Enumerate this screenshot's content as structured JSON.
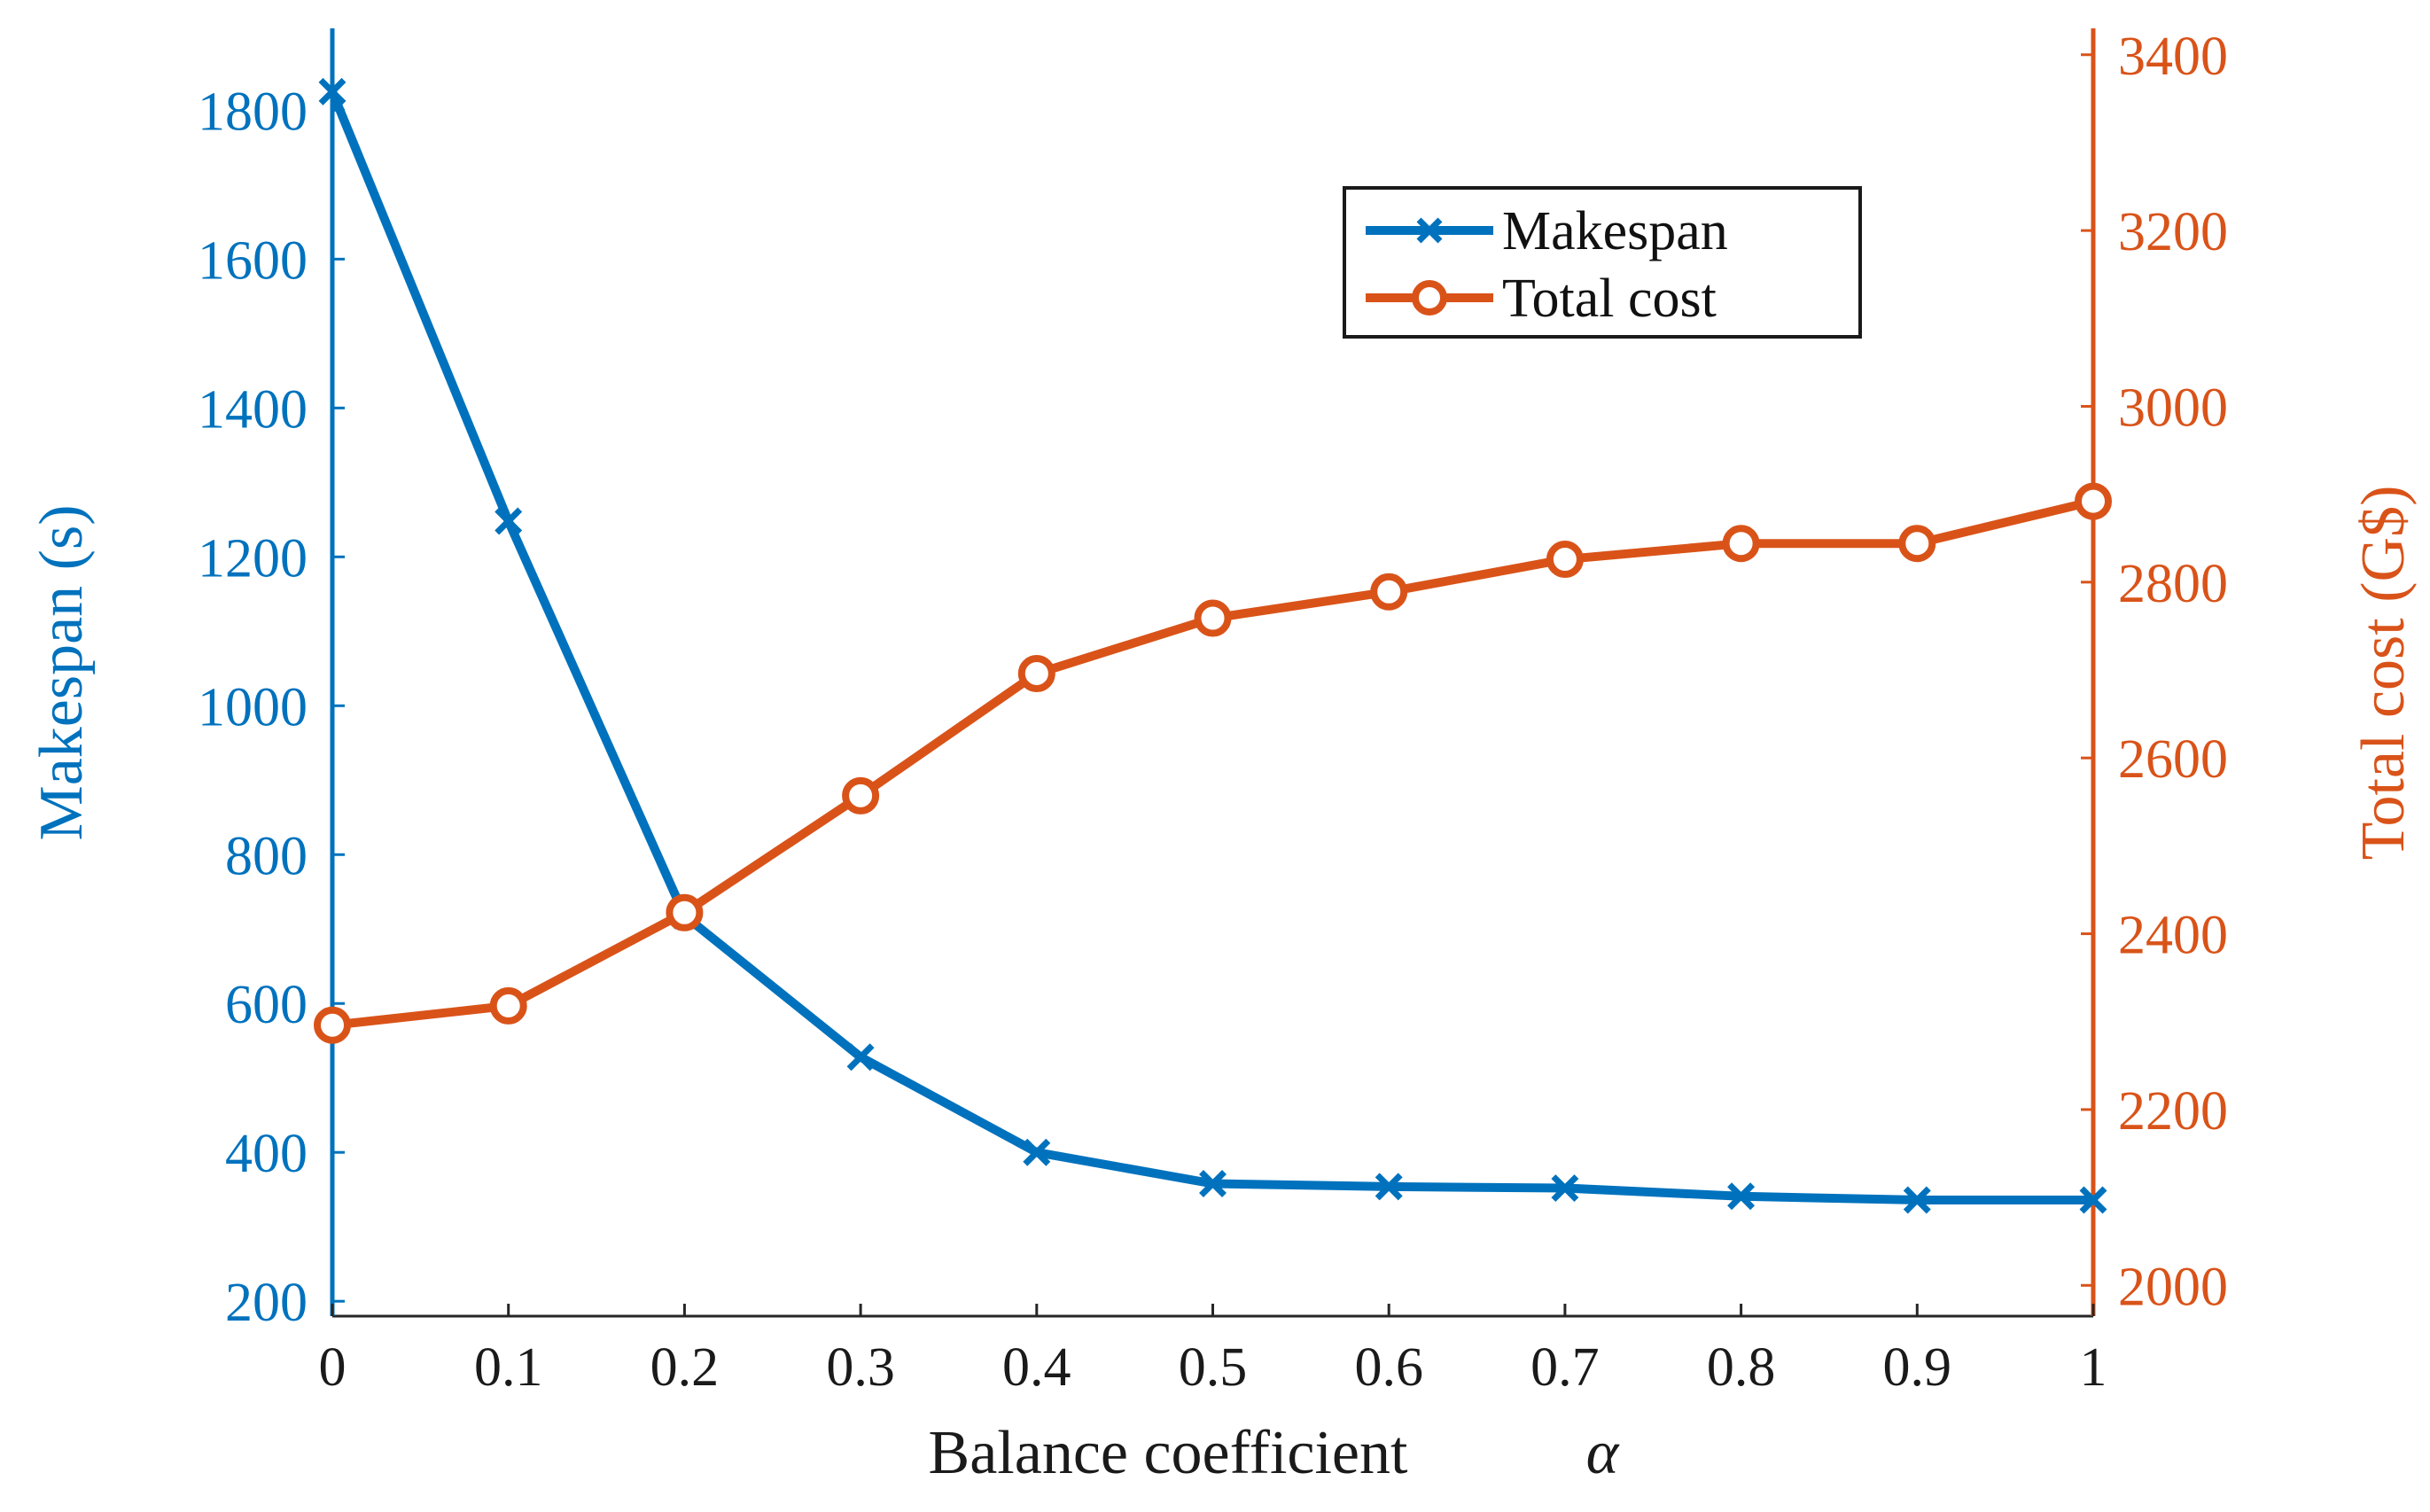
{
  "chart_data": {
    "type": "line",
    "x": [
      0,
      0.1,
      0.2,
      0.3,
      0.4,
      0.5,
      0.6,
      0.7,
      0.8,
      0.9,
      1
    ],
    "x_tick_labels": [
      "0",
      "0.1",
      "0.2",
      "0.3",
      "0.4",
      "0.5",
      "0.6",
      "0.7",
      "0.8",
      "0.9",
      "1"
    ],
    "xlabel": "Balance coefficient",
    "xlabel_symbol": "α",
    "xlim": [
      0,
      1
    ],
    "series": [
      {
        "name": "Makespan",
        "axis": "left",
        "marker": "x",
        "color": "#0072BD",
        "values": [
          1825,
          1248,
          718,
          528,
          400,
          358,
          354,
          352,
          341,
          336,
          336
        ]
      },
      {
        "name": "Total cost",
        "axis": "right",
        "marker": "o",
        "color": "#D95319",
        "values": [
          2296,
          2318,
          2424,
          2557,
          2696,
          2759,
          2789,
          2826,
          2844,
          2844,
          2892
        ]
      }
    ],
    "y_left": {
      "label": "Makespan (s)",
      "ylim": [
        180,
        1910
      ],
      "ticks": [
        200,
        400,
        600,
        800,
        1000,
        1200,
        1400,
        1600,
        1800
      ],
      "color": "#0072BD"
    },
    "y_right": {
      "label": "Total cost (G$)",
      "ylim": [
        1965,
        3430
      ],
      "ticks": [
        2000,
        2200,
        2400,
        2600,
        2800,
        3000,
        3200,
        3400
      ],
      "color": "#D95319"
    },
    "legend": {
      "placement": "top-right-inside",
      "entries": [
        "Makespan",
        "Total cost"
      ]
    },
    "grid": false
  }
}
